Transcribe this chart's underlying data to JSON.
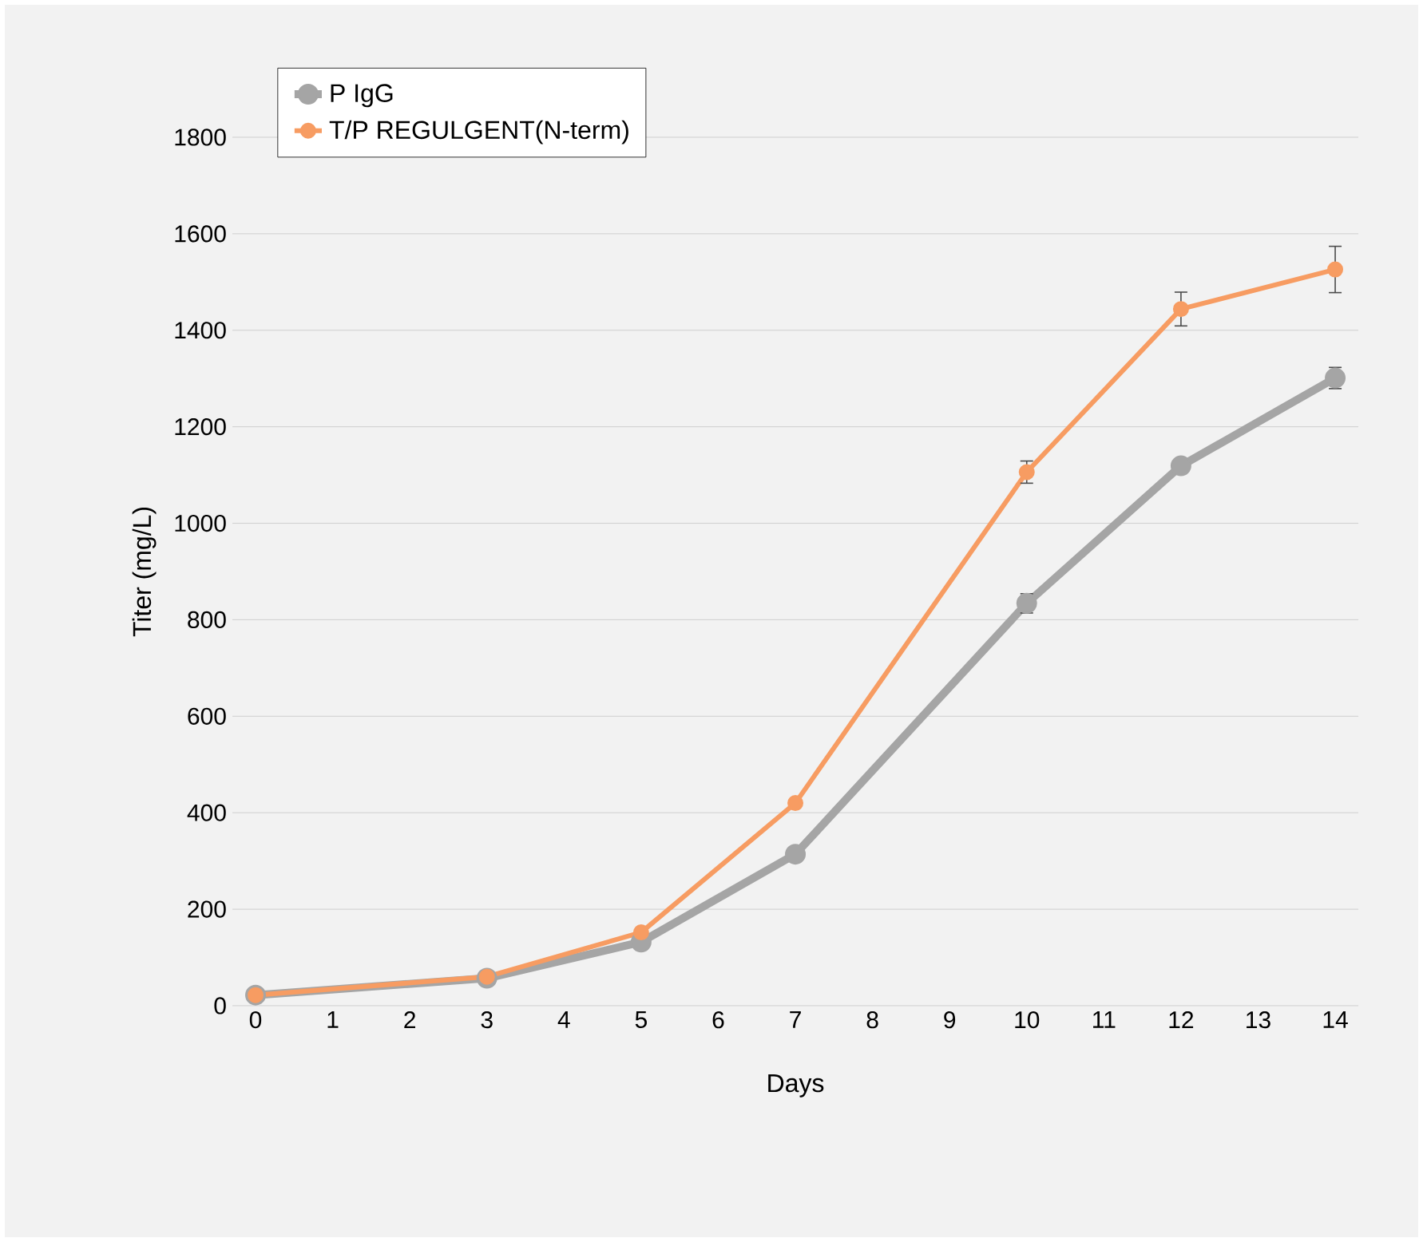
{
  "chart_data": {
    "type": "line",
    "xlabel": "Days",
    "ylabel": "Titer (mg/L)",
    "x": [
      0,
      3,
      5,
      7,
      10,
      12,
      14
    ],
    "xlim": [
      -0.3,
      14.3
    ],
    "xticks": [
      0,
      1,
      2,
      3,
      4,
      5,
      6,
      7,
      8,
      9,
      10,
      11,
      12,
      13,
      14
    ],
    "ylim": [
      0,
      1800
    ],
    "yticks": [
      0,
      200,
      400,
      600,
      800,
      1000,
      1200,
      1400,
      1600,
      1800
    ],
    "grid": "y",
    "legend": "top left",
    "marker": "circle",
    "line_style": "solid",
    "series": [
      {
        "name": "P IgG",
        "color": "#a5a5a5",
        "values": [
          22,
          57,
          132,
          314,
          834,
          1119,
          1301
        ],
        "errors": [
          null,
          null,
          null,
          null,
          20,
          12,
          22
        ]
      },
      {
        "name": "T/P REGULGENT(N-term)",
        "color": "#f79c62",
        "values": [
          22,
          60,
          152,
          420,
          1106,
          1444,
          1526
        ],
        "errors": [
          null,
          null,
          null,
          null,
          23,
          35,
          48
        ]
      }
    ]
  }
}
